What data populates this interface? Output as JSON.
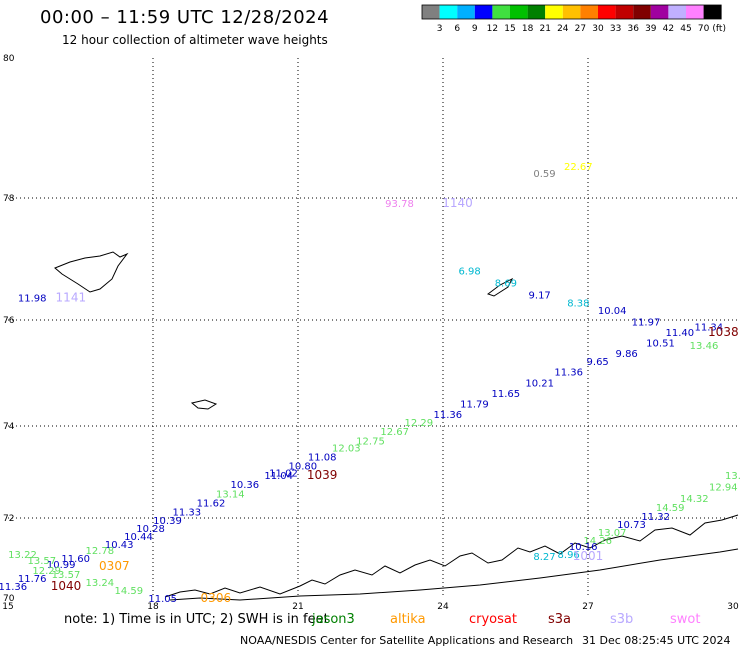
{
  "title": "00:00 – 11:59 UTC 12/28/2024",
  "subtitle": "12 hour collection of altimeter wave heights",
  "color_scale": {
    "unit": "(ft)",
    "colors": [
      "#808080",
      "#00ffff",
      "#00b0ff",
      "#0000ff",
      "#40e040",
      "#00c000",
      "#008000",
      "#ffff00",
      "#ffc000",
      "#ff8000",
      "#ff0000",
      "#c00000",
      "#800000",
      "#a000a0",
      "#c0b0ff",
      "#ff80ff",
      "#000000"
    ],
    "labels": [
      "3",
      "6",
      "9",
      "12",
      "15",
      "18",
      "21",
      "24",
      "27",
      "30",
      "33",
      "36",
      "39",
      "42",
      "45",
      "70"
    ]
  },
  "map": {
    "lon_range": [
      15,
      30
    ],
    "lat_range": [
      70,
      80
    ],
    "lon_ticks": [
      "15",
      "18",
      "21",
      "24",
      "27",
      "30"
    ],
    "lat_ticks": [
      "70",
      "72",
      "74",
      "76",
      "78",
      "80"
    ],
    "grid": true
  },
  "observations": [
    {
      "text": "0.59",
      "lon": 26.1,
      "lat": 78.3,
      "color": "#808080"
    },
    {
      "text": "22.67",
      "lon": 26.8,
      "lat": 78.4,
      "color": "#ffff00"
    },
    {
      "text": "93.78",
      "lon": 23.1,
      "lat": 77.85,
      "color": "#ee80ee"
    },
    {
      "text": "1140",
      "lon": 24.3,
      "lat": 77.85,
      "color": "#b8a8ff",
      "pass": true
    },
    {
      "text": "11.98",
      "lon": 15.5,
      "lat": 76.3,
      "color": "#0000c0"
    },
    {
      "text": "1141",
      "lon": 16.3,
      "lat": 76.3,
      "color": "#b8a8ff",
      "pass": true
    },
    {
      "text": "6.98",
      "lon": 24.55,
      "lat": 76.75,
      "color": "#00b8d0"
    },
    {
      "text": "8.69",
      "lon": 25.3,
      "lat": 76.55,
      "color": "#00b8d0"
    },
    {
      "text": "9.17",
      "lon": 26.0,
      "lat": 76.35,
      "color": "#0000c0"
    },
    {
      "text": "8.38",
      "lon": 26.8,
      "lat": 76.22,
      "color": "#00b8d0"
    },
    {
      "text": "10.04",
      "lon": 27.5,
      "lat": 76.1,
      "color": "#0000c0"
    },
    {
      "text": "11.97",
      "lon": 28.2,
      "lat": 75.9,
      "color": "#0000c0"
    },
    {
      "text": "11.34",
      "lon": 29.5,
      "lat": 75.8,
      "color": "#0000c0"
    },
    {
      "text": "11.40",
      "lon": 28.9,
      "lat": 75.7,
      "color": "#0000c0"
    },
    {
      "text": "1038",
      "lon": 29.8,
      "lat": 75.7,
      "color": "#800000",
      "pass": true
    },
    {
      "text": "10.51",
      "lon": 28.5,
      "lat": 75.5,
      "color": "#0000c0"
    },
    {
      "text": "13.46",
      "lon": 29.4,
      "lat": 75.45,
      "color": "#60e060"
    },
    {
      "text": "9.86",
      "lon": 27.8,
      "lat": 75.3,
      "color": "#0000c0"
    },
    {
      "text": "9.65",
      "lon": 27.2,
      "lat": 75.15,
      "color": "#0000c0"
    },
    {
      "text": "11.36",
      "lon": 26.6,
      "lat": 74.95,
      "color": "#0000c0"
    },
    {
      "text": "10.21",
      "lon": 26.0,
      "lat": 74.75,
      "color": "#0000c0"
    },
    {
      "text": "11.65",
      "lon": 25.3,
      "lat": 74.55,
      "color": "#0000c0"
    },
    {
      "text": "11.79",
      "lon": 24.65,
      "lat": 74.35,
      "color": "#0000c0"
    },
    {
      "text": "11.36",
      "lon": 24.1,
      "lat": 74.15,
      "color": "#0000c0"
    },
    {
      "text": "12.29",
      "lon": 23.5,
      "lat": 74.0,
      "color": "#60e060"
    },
    {
      "text": "12.67",
      "lon": 23.0,
      "lat": 73.8,
      "color": "#60e060"
    },
    {
      "text": "12.75",
      "lon": 22.5,
      "lat": 73.6,
      "color": "#60e060"
    },
    {
      "text": "12.03",
      "lon": 22.0,
      "lat": 73.45,
      "color": "#60e060"
    },
    {
      "text": "11.08",
      "lon": 21.5,
      "lat": 73.25,
      "color": "#0000c0"
    },
    {
      "text": "10.80",
      "lon": 21.1,
      "lat": 73.05,
      "color": "#0000c0"
    },
    {
      "text": "1039",
      "lon": 21.5,
      "lat": 72.85,
      "color": "#800000",
      "pass": true
    },
    {
      "text": "11.02",
      "lon": 20.7,
      "lat": 72.9,
      "color": "#0000c0"
    },
    {
      "text": "11.04",
      "lon": 20.6,
      "lat": 72.85,
      "color": "#0000c0"
    },
    {
      "text": "10.36",
      "lon": 19.9,
      "lat": 72.65,
      "color": "#0000c0"
    },
    {
      "text": "13.14",
      "lon": 19.6,
      "lat": 72.45,
      "color": "#60e060"
    },
    {
      "text": "11.62",
      "lon": 19.2,
      "lat": 72.25,
      "color": "#0000c0"
    },
    {
      "text": "11.33",
      "lon": 18.7,
      "lat": 72.05,
      "color": "#0000c0"
    },
    {
      "text": "10.39",
      "lon": 18.3,
      "lat": 71.85,
      "color": "#0000c0"
    },
    {
      "text": "10.28",
      "lon": 17.95,
      "lat": 71.65,
      "color": "#0000c0"
    },
    {
      "text": "10.44",
      "lon": 17.7,
      "lat": 71.45,
      "color": "#0000c0"
    },
    {
      "text": "10.43",
      "lon": 17.3,
      "lat": 71.25,
      "color": "#0000c0"
    },
    {
      "text": "12.78",
      "lon": 16.9,
      "lat": 71.1,
      "color": "#60e060"
    },
    {
      "text": "13.22",
      "lon": 15.3,
      "lat": 71.0,
      "color": "#60e060"
    },
    {
      "text": "11.60",
      "lon": 16.4,
      "lat": 70.9,
      "color": "#0000c0"
    },
    {
      "text": "13.57",
      "lon": 15.7,
      "lat": 70.85,
      "color": "#60e060"
    },
    {
      "text": "10.99",
      "lon": 16.1,
      "lat": 70.75,
      "color": "#0000c0"
    },
    {
      "text": "12.29",
      "lon": 15.8,
      "lat": 70.6,
      "color": "#60e060"
    },
    {
      "text": "0307",
      "lon": 17.2,
      "lat": 70.7,
      "color": "#ff9900",
      "pass": true
    },
    {
      "text": "11.76",
      "lon": 15.5,
      "lat": 70.4,
      "color": "#0000c0"
    },
    {
      "text": "13.57",
      "lon": 16.2,
      "lat": 70.5,
      "color": "#60e060"
    },
    {
      "text": "11.36",
      "lon": 15.1,
      "lat": 70.2,
      "color": "#0000c0"
    },
    {
      "text": "1040",
      "lon": 16.2,
      "lat": 70.2,
      "color": "#800000",
      "pass": true
    },
    {
      "text": "13.24",
      "lon": 16.9,
      "lat": 70.3,
      "color": "#60e060"
    },
    {
      "text": "14.59",
      "lon": 17.5,
      "lat": 70.1,
      "color": "#60e060"
    },
    {
      "text": "11.05",
      "lon": 18.2,
      "lat": 69.9,
      "color": "#0000c0"
    },
    {
      "text": "0306",
      "lon": 19.3,
      "lat": 69.9,
      "color": "#ff9900",
      "pass": true
    },
    {
      "text": "13.",
      "lon": 30.0,
      "lat": 72.85,
      "color": "#60e060"
    },
    {
      "text": "12.94",
      "lon": 29.8,
      "lat": 72.6,
      "color": "#60e060"
    },
    {
      "text": "14.32",
      "lon": 29.2,
      "lat": 72.35,
      "color": "#60e060"
    },
    {
      "text": "14.59",
      "lon": 28.7,
      "lat": 72.15,
      "color": "#60e060"
    },
    {
      "text": "11.32",
      "lon": 28.4,
      "lat": 71.95,
      "color": "#0000c0"
    },
    {
      "text": "10.73",
      "lon": 27.9,
      "lat": 71.75,
      "color": "#0000c0"
    },
    {
      "text": "13.07",
      "lon": 27.5,
      "lat": 71.55,
      "color": "#60e060"
    },
    {
      "text": "14.26",
      "lon": 27.2,
      "lat": 71.35,
      "color": "#60e060"
    },
    {
      "text": "10.16",
      "lon": 26.9,
      "lat": 71.2,
      "color": "#0000c0"
    },
    {
      "text": "8.96",
      "lon": 26.6,
      "lat": 71.0,
      "color": "#00b8d0"
    },
    {
      "text": "1001",
      "lon": 27.0,
      "lat": 70.95,
      "color": "#b8a8ff",
      "pass": true
    },
    {
      "text": "8.27",
      "lon": 26.1,
      "lat": 70.95,
      "color": "#00b8d0"
    }
  ],
  "note": {
    "text": "note:  1) Time is in UTC; 2) SWH is in feet",
    "satellites": [
      {
        "name": "jason3",
        "color": "#008000"
      },
      {
        "name": "altika",
        "color": "#ff9900"
      },
      {
        "name": "cryosat",
        "color": "#ff0000"
      },
      {
        "name": "s3a",
        "color": "#800000"
      },
      {
        "name": "s3b",
        "color": "#b8a8ff"
      },
      {
        "name": "swot",
        "color": "#ff80ff"
      }
    ]
  },
  "footer": {
    "source": "NOAA/NESDIS Center for Satellite Applications and Research",
    "timestamp": "31 Dec 08:25:45 UTC 2024"
  }
}
